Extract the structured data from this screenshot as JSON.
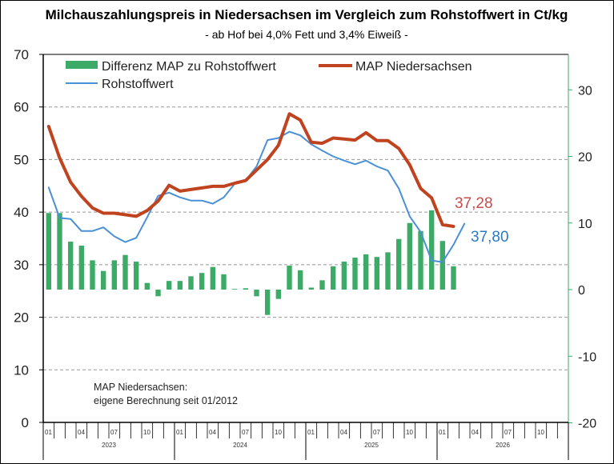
{
  "chart_data": {
    "type": "bar+line",
    "title": "Milchauszahlungspreis in Niedersachsen im Vergleich zum Rohstoffwert in Ct/kg",
    "subtitle": "- ab Hof bei 4,0% Fett und 3,4% Eiweiß -",
    "x_start": "2023-01",
    "x_end": "2026-12",
    "years": [
      "2023",
      "2024",
      "2025",
      "2026"
    ],
    "month_labels": [
      "01",
      "04",
      "07",
      "10"
    ],
    "ylim_left": [
      0,
      70
    ],
    "yticks_left": [
      0,
      10,
      20,
      30,
      40,
      50,
      60,
      70
    ],
    "ylim_right": [
      -20,
      35
    ],
    "yticks_right": [
      -20,
      -10,
      0,
      10,
      20,
      30
    ],
    "grid": true,
    "legend_placement": "top-left",
    "series": [
      {
        "name": "Differenz MAP zu Rohstoffwert",
        "type": "bar",
        "axis": "right",
        "color": "#3DAA67",
        "values": [
          11.5,
          11.5,
          7.2,
          6.6,
          4.4,
          2.8,
          4.4,
          5.2,
          4.2,
          1.0,
          -1.0,
          1.3,
          1.3,
          2.0,
          2.5,
          3.4,
          2.3,
          0.1,
          0.2,
          -1.0,
          -3.8,
          -1.4,
          3.6,
          2.9,
          0.3,
          1.4,
          3.5,
          4.2,
          4.8,
          5.3,
          4.9,
          5.6,
          7.6,
          10.0,
          8.8,
          11.9,
          7.3,
          3.5
        ]
      },
      {
        "name": "MAP Niedersachsen",
        "type": "line",
        "axis": "left",
        "color": "#C0431F",
        "values": [
          56.3,
          50.3,
          45.7,
          43.0,
          40.8,
          39.8,
          39.8,
          39.5,
          39.2,
          40.3,
          42.1,
          45.1,
          44.0,
          44.3,
          44.6,
          44.9,
          44.9,
          45.5,
          46.0,
          48.0,
          50.0,
          52.7,
          58.7,
          57.5,
          53.3,
          53.1,
          54.1,
          53.9,
          53.7,
          55.1,
          53.6,
          53.6,
          52.1,
          49.0,
          44.5,
          42.7,
          37.6,
          37.28
        ]
      },
      {
        "name": "Rohstoffwert",
        "type": "line",
        "axis": "left",
        "color": "#4A90D6",
        "values": [
          44.7,
          38.9,
          38.7,
          36.4,
          36.4,
          37.1,
          35.4,
          34.3,
          35.1,
          39.0,
          43.1,
          43.7,
          42.8,
          42.2,
          42.2,
          41.6,
          42.8,
          45.4,
          46.0,
          48.7,
          53.7,
          54.1,
          55.3,
          54.6,
          52.9,
          51.7,
          50.6,
          49.8,
          49.1,
          49.8,
          48.7,
          47.9,
          44.5,
          39.2,
          36.2,
          30.8,
          30.5,
          33.8,
          37.8
        ]
      }
    ],
    "annotations": [
      {
        "text": "37,28",
        "color": "#C84B4B"
      },
      {
        "text": "37,80",
        "color": "#2B7BC4"
      }
    ],
    "note_lines": [
      "MAP Niedersachsen:",
      "eigene Berechnung seit 01/2012"
    ]
  }
}
